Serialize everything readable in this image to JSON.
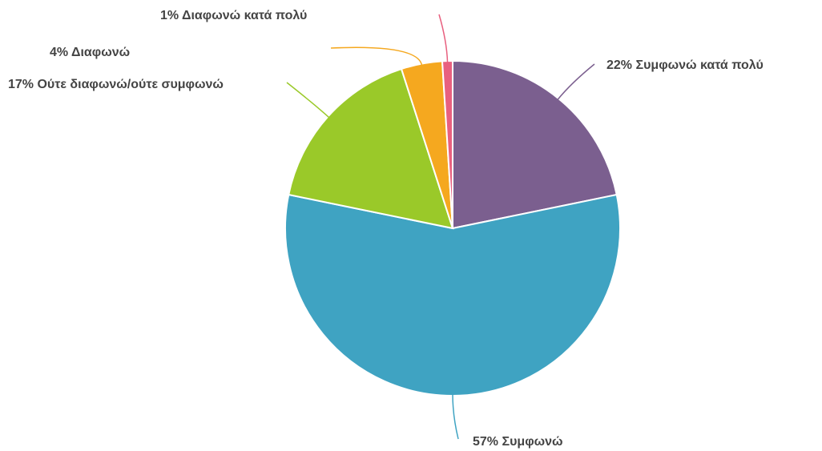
{
  "chart_data": {
    "type": "pie",
    "categories": [
      "Συμφωνώ κατά πολύ",
      "Συμφωνώ",
      "Ούτε διαφωνώ/ούτε συμφωνώ",
      "Διαφωνώ",
      "Διαφωνώ κατά πολύ"
    ],
    "values": [
      22,
      57,
      17,
      4,
      1
    ],
    "value_labels": [
      "22%",
      "57%",
      "17%",
      "4%",
      "1%"
    ],
    "colors": [
      "#7b5f8f",
      "#3fa3c2",
      "#9ac929",
      "#f5a81f",
      "#e8607f"
    ]
  }
}
